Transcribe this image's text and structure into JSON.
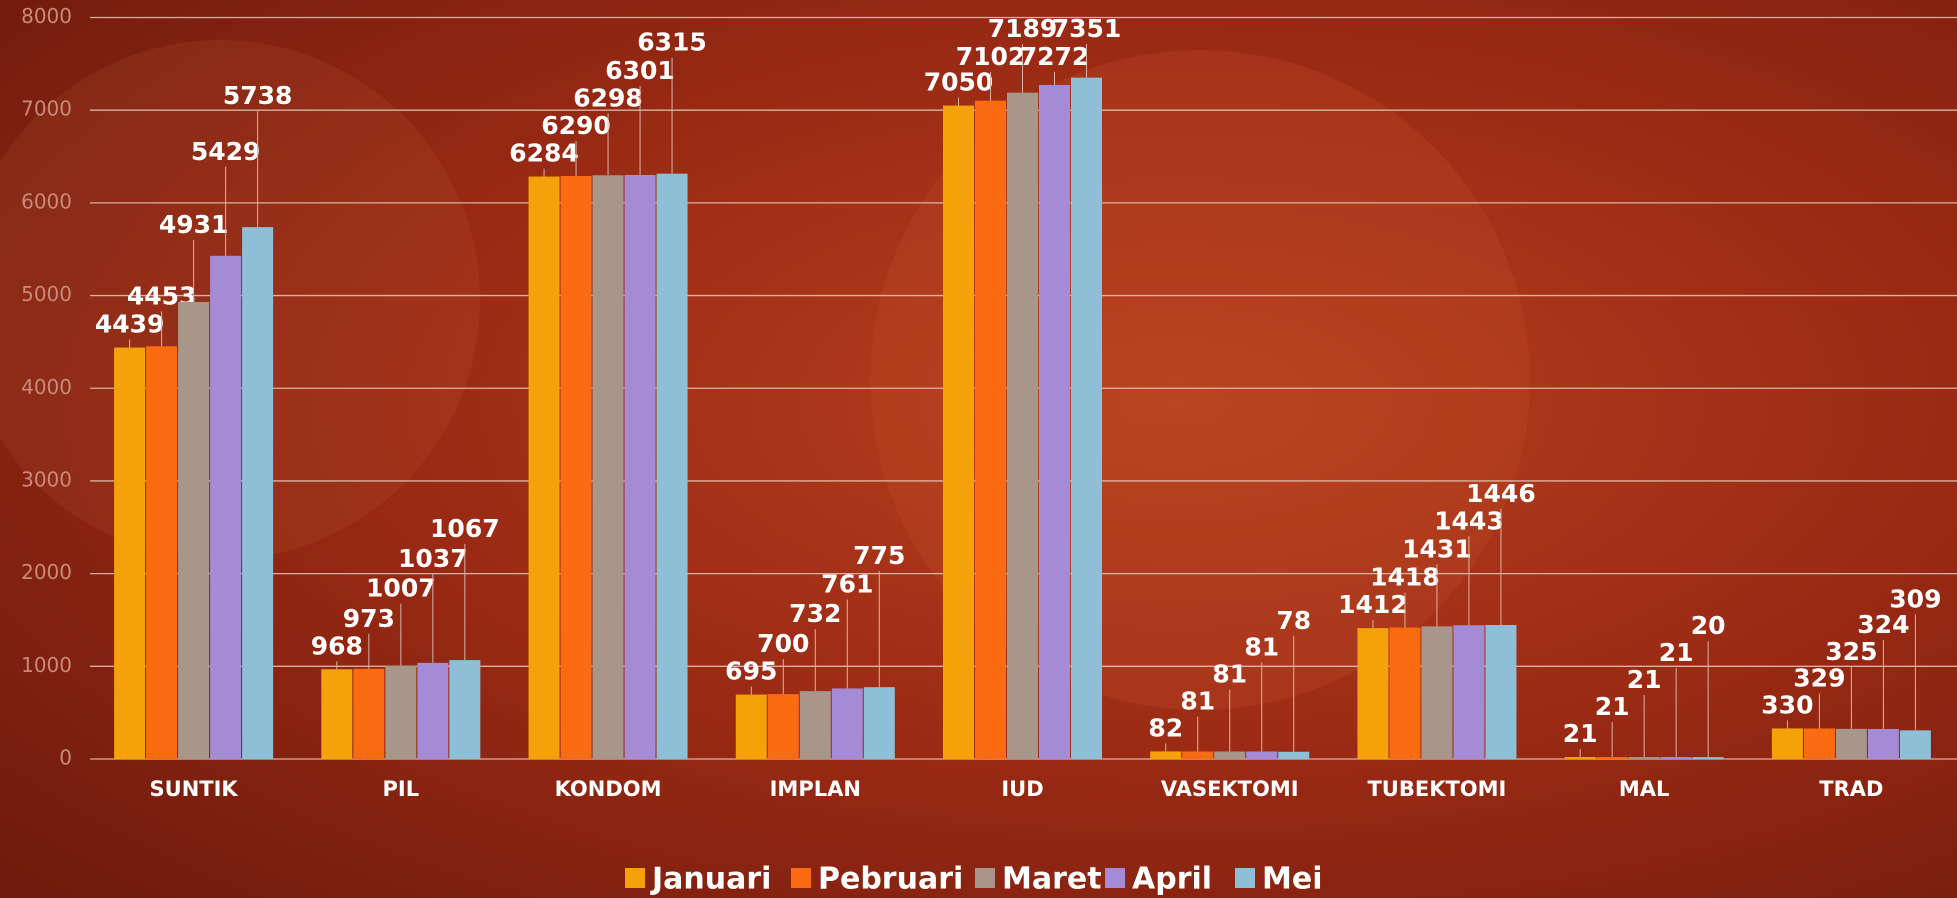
{
  "chart_data": {
    "type": "bar",
    "categories": [
      "SUNTIK",
      "PIL",
      "KONDOM",
      "IMPLAN",
      "IUD",
      "VASEKTOMI",
      "TUBEKTOMI",
      "MAL",
      "TRAD"
    ],
    "series": [
      {
        "name": "Januari",
        "color": "#f5a20a",
        "values": [
          4439,
          968,
          6284,
          695,
          7050,
          82,
          1412,
          21,
          330
        ]
      },
      {
        "name": "Pebruari",
        "color": "#fb6c12",
        "values": [
          4453,
          973,
          6290,
          700,
          7102,
          81,
          1418,
          21,
          329
        ]
      },
      {
        "name": "Maret",
        "color": "#a8968a",
        "values": [
          4931,
          1007,
          6298,
          732,
          7189,
          81,
          1431,
          21,
          325
        ]
      },
      {
        "name": "April",
        "color": "#a58bd6",
        "values": [
          5429,
          1037,
          6301,
          761,
          7272,
          81,
          1443,
          21,
          324
        ]
      },
      {
        "name": "Mei",
        "color": "#8fbfd6",
        "values": [
          5738,
          1067,
          6315,
          775,
          7351,
          78,
          1446,
          20,
          309
        ]
      }
    ],
    "ylim": [
      0,
      8000
    ],
    "yticks": [
      0,
      1000,
      2000,
      3000,
      4000,
      5000,
      6000,
      7000,
      8000
    ],
    "grid": true,
    "legend": "bottom"
  }
}
